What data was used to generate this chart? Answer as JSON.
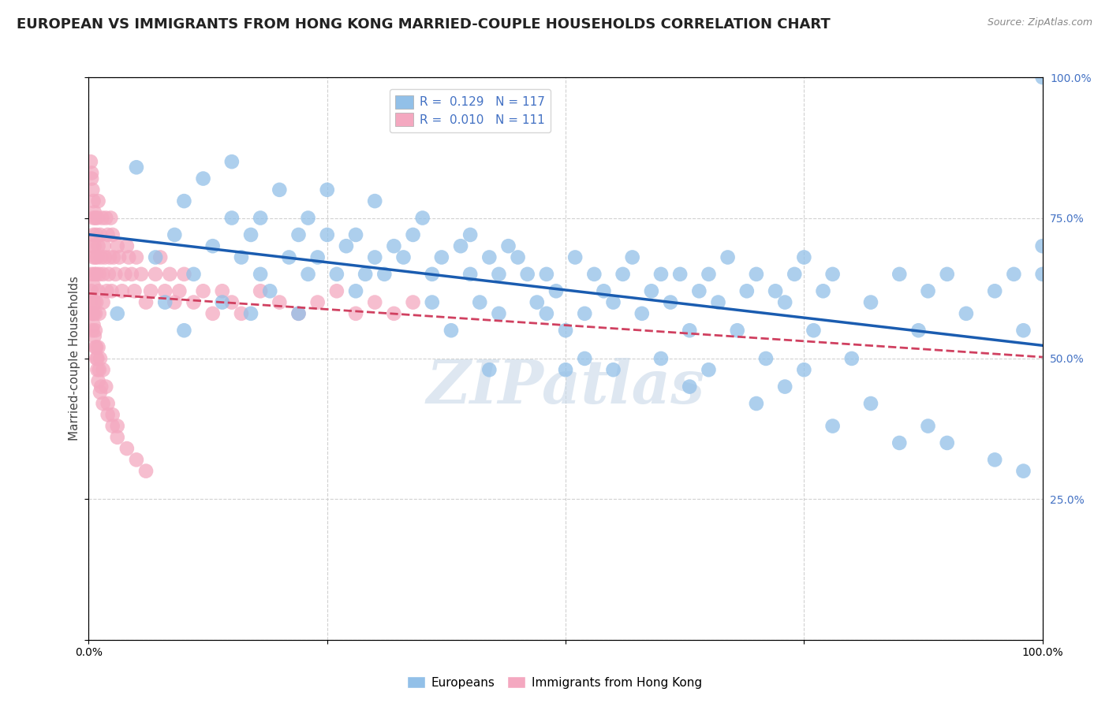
{
  "title": "EUROPEAN VS IMMIGRANTS FROM HONG KONG MARRIED-COUPLE HOUSEHOLDS CORRELATION CHART",
  "source": "Source: ZipAtlas.com",
  "ylabel": "Married-couple Households",
  "xlabel": "",
  "xlim": [
    0.0,
    1.0
  ],
  "ylim": [
    0.0,
    1.0
  ],
  "blue_color": "#92c0e8",
  "pink_color": "#f4a8c0",
  "blue_line_color": "#1a5cb0",
  "pink_line_color": "#d04060",
  "legend_text_color": "#4472c4",
  "R_blue": 0.129,
  "N_blue": 117,
  "R_pink": 0.01,
  "N_pink": 111,
  "background_color": "#ffffff",
  "grid_color": "#cccccc",
  "title_fontsize": 13,
  "axis_label_fontsize": 11,
  "tick_fontsize": 10,
  "watermark": "ZIPatlas",
  "watermark_color": "#c8d8e8",
  "blue_scatter_x": [
    0.03,
    0.05,
    0.07,
    0.08,
    0.09,
    0.1,
    0.1,
    0.11,
    0.12,
    0.13,
    0.14,
    0.15,
    0.15,
    0.16,
    0.17,
    0.17,
    0.18,
    0.18,
    0.19,
    0.2,
    0.21,
    0.22,
    0.22,
    0.23,
    0.23,
    0.24,
    0.25,
    0.25,
    0.26,
    0.27,
    0.28,
    0.28,
    0.29,
    0.3,
    0.3,
    0.31,
    0.32,
    0.33,
    0.34,
    0.35,
    0.36,
    0.36,
    0.37,
    0.38,
    0.39,
    0.4,
    0.4,
    0.41,
    0.42,
    0.43,
    0.44,
    0.45,
    0.46,
    0.47,
    0.48,
    0.48,
    0.49,
    0.5,
    0.51,
    0.52,
    0.53,
    0.54,
    0.55,
    0.56,
    0.57,
    0.58,
    0.59,
    0.6,
    0.61,
    0.62,
    0.63,
    0.64,
    0.65,
    0.66,
    0.67,
    0.68,
    0.69,
    0.7,
    0.71,
    0.72,
    0.73,
    0.74,
    0.75,
    0.76,
    0.77,
    0.78,
    0.8,
    0.82,
    0.85,
    0.87,
    0.88,
    0.9,
    0.92,
    0.95,
    0.97,
    0.98,
    1.0,
    1.0,
    1.0,
    0.42,
    0.43,
    0.5,
    0.52,
    0.55,
    0.6,
    0.63,
    0.65,
    0.7,
    0.73,
    0.75,
    0.78,
    0.82,
    0.85,
    0.88,
    0.9,
    0.95,
    0.98
  ],
  "blue_scatter_y": [
    0.58,
    0.84,
    0.68,
    0.6,
    0.72,
    0.55,
    0.78,
    0.65,
    0.82,
    0.7,
    0.6,
    0.75,
    0.85,
    0.68,
    0.72,
    0.58,
    0.65,
    0.75,
    0.62,
    0.8,
    0.68,
    0.72,
    0.58,
    0.65,
    0.75,
    0.68,
    0.72,
    0.8,
    0.65,
    0.7,
    0.62,
    0.72,
    0.65,
    0.68,
    0.78,
    0.65,
    0.7,
    0.68,
    0.72,
    0.75,
    0.65,
    0.6,
    0.68,
    0.55,
    0.7,
    0.65,
    0.72,
    0.6,
    0.68,
    0.65,
    0.7,
    0.68,
    0.65,
    0.6,
    0.58,
    0.65,
    0.62,
    0.55,
    0.68,
    0.58,
    0.65,
    0.62,
    0.6,
    0.65,
    0.68,
    0.58,
    0.62,
    0.65,
    0.6,
    0.65,
    0.55,
    0.62,
    0.65,
    0.6,
    0.68,
    0.55,
    0.62,
    0.65,
    0.5,
    0.62,
    0.6,
    0.65,
    0.68,
    0.55,
    0.62,
    0.65,
    0.5,
    0.6,
    0.65,
    0.55,
    0.62,
    0.65,
    0.58,
    0.62,
    0.65,
    0.55,
    0.65,
    0.7,
    1.0,
    0.48,
    0.58,
    0.48,
    0.5,
    0.48,
    0.5,
    0.45,
    0.48,
    0.42,
    0.45,
    0.48,
    0.38,
    0.42,
    0.35,
    0.38,
    0.35,
    0.32,
    0.3
  ],
  "pink_scatter_x": [
    0.002,
    0.003,
    0.003,
    0.004,
    0.004,
    0.004,
    0.005,
    0.005,
    0.005,
    0.005,
    0.005,
    0.006,
    0.006,
    0.006,
    0.007,
    0.007,
    0.007,
    0.008,
    0.008,
    0.008,
    0.009,
    0.009,
    0.01,
    0.01,
    0.01,
    0.011,
    0.011,
    0.012,
    0.013,
    0.014,
    0.015,
    0.015,
    0.016,
    0.017,
    0.018,
    0.019,
    0.02,
    0.021,
    0.022,
    0.023,
    0.024,
    0.025,
    0.026,
    0.028,
    0.03,
    0.032,
    0.035,
    0.038,
    0.04,
    0.042,
    0.045,
    0.048,
    0.05,
    0.055,
    0.06,
    0.065,
    0.07,
    0.075,
    0.08,
    0.085,
    0.09,
    0.095,
    0.1,
    0.11,
    0.12,
    0.13,
    0.14,
    0.15,
    0.16,
    0.18,
    0.2,
    0.22,
    0.24,
    0.26,
    0.28,
    0.3,
    0.32,
    0.34,
    0.003,
    0.004,
    0.005,
    0.006,
    0.007,
    0.008,
    0.009,
    0.01,
    0.011,
    0.012,
    0.013,
    0.015,
    0.018,
    0.02,
    0.025,
    0.03,
    0.002,
    0.003,
    0.004,
    0.005,
    0.006,
    0.007,
    0.008,
    0.009,
    0.01,
    0.012,
    0.015,
    0.02,
    0.025,
    0.03,
    0.04,
    0.05,
    0.06
  ],
  "pink_scatter_y": [
    0.6,
    0.62,
    0.65,
    0.58,
    0.7,
    0.55,
    0.68,
    0.63,
    0.72,
    0.58,
    0.75,
    0.65,
    0.7,
    0.6,
    0.68,
    0.75,
    0.58,
    0.72,
    0.65,
    0.6,
    0.68,
    0.75,
    0.7,
    0.62,
    0.78,
    0.65,
    0.58,
    0.72,
    0.68,
    0.75,
    0.6,
    0.65,
    0.7,
    0.68,
    0.75,
    0.62,
    0.72,
    0.65,
    0.68,
    0.75,
    0.62,
    0.72,
    0.68,
    0.65,
    0.7,
    0.68,
    0.62,
    0.65,
    0.7,
    0.68,
    0.65,
    0.62,
    0.68,
    0.65,
    0.6,
    0.62,
    0.65,
    0.68,
    0.62,
    0.65,
    0.6,
    0.62,
    0.65,
    0.6,
    0.62,
    0.58,
    0.62,
    0.6,
    0.58,
    0.62,
    0.6,
    0.58,
    0.6,
    0.62,
    0.58,
    0.6,
    0.58,
    0.6,
    0.82,
    0.8,
    0.78,
    0.76,
    0.55,
    0.52,
    0.5,
    0.52,
    0.48,
    0.5,
    0.45,
    0.48,
    0.45,
    0.42,
    0.4,
    0.38,
    0.85,
    0.83,
    0.58,
    0.56,
    0.54,
    0.52,
    0.5,
    0.48,
    0.46,
    0.44,
    0.42,
    0.4,
    0.38,
    0.36,
    0.34,
    0.32,
    0.3
  ]
}
